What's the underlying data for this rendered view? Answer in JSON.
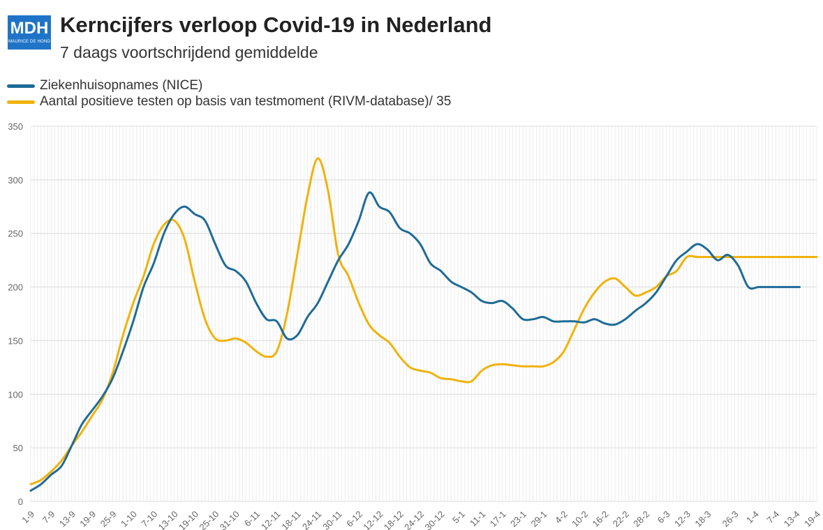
{
  "logo": {
    "text": "MDH",
    "subtext": "MAURICE DE HOND"
  },
  "header": {
    "title": "Kerncijfers verloop Covid-19 in Nederland",
    "subtitle": "7 daags voortschrijdend gemiddelde"
  },
  "chart_data": {
    "type": "line",
    "title": "Kerncijfers verloop Covid-19 in Nederland",
    "subtitle": "7 daags voortschrijdend gemiddelde",
    "ylim": [
      0,
      350
    ],
    "yticks": [
      0,
      50,
      100,
      150,
      200,
      250,
      300,
      350
    ],
    "grid": true,
    "legend_position": "top-left",
    "x_tick_labels": [
      "1-9",
      "7-9",
      "13-9",
      "19-9",
      "25-9",
      "1-10",
      "7-10",
      "13-10",
      "19-10",
      "25-10",
      "31-10",
      "6-11",
      "12-11",
      "18-11",
      "24-11",
      "30-11",
      "6-12",
      "12-12",
      "18-12",
      "24-12",
      "30-12",
      "5-1",
      "11-1",
      "17-1",
      "23-1",
      "29-1",
      "4-2",
      "10-2",
      "16-2",
      "22-2",
      "28-2",
      "6-3",
      "12-3",
      "18-3",
      "26-3",
      "1-4",
      "7-4",
      "13-4",
      "19-4"
    ],
    "x_tick_index": [
      0,
      6,
      12,
      18,
      24,
      30,
      36,
      42,
      48,
      54,
      60,
      66,
      72,
      78,
      84,
      90,
      96,
      102,
      108,
      114,
      120,
      126,
      132,
      138,
      144,
      150,
      156,
      162,
      168,
      174,
      180,
      186,
      192,
      198,
      206,
      212,
      218,
      224,
      230
    ],
    "x_count": 231,
    "series": [
      {
        "name": "Ziekenhuisopnames (NICE)",
        "color": "#1e6b96",
        "x": [
          0,
          3,
          6,
          9,
          12,
          15,
          18,
          21,
          24,
          27,
          30,
          33,
          36,
          39,
          42,
          45,
          48,
          51,
          54,
          57,
          60,
          63,
          66,
          69,
          72,
          75,
          78,
          81,
          84,
          87,
          90,
          93,
          96,
          99,
          102,
          105,
          108,
          111,
          114,
          117,
          120,
          123,
          126,
          129,
          132,
          135,
          138,
          141,
          144,
          147,
          150,
          153,
          156,
          159,
          162,
          165,
          168,
          171,
          174,
          177,
          180,
          183,
          186,
          189,
          192,
          195,
          198,
          201,
          204,
          207,
          210,
          213,
          216,
          219,
          222,
          225
        ],
        "values": [
          10,
          16,
          25,
          33,
          52,
          72,
          85,
          98,
          115,
          140,
          168,
          200,
          222,
          250,
          268,
          275,
          268,
          262,
          240,
          220,
          215,
          205,
          185,
          170,
          168,
          152,
          155,
          172,
          185,
          205,
          225,
          240,
          262,
          288,
          275,
          270,
          255,
          250,
          240,
          222,
          215,
          205,
          200,
          195,
          187,
          185,
          187,
          180,
          170,
          170,
          172,
          168,
          168,
          168,
          167,
          170,
          166,
          165,
          170,
          178,
          185,
          195,
          210,
          225,
          233,
          240,
          235,
          225,
          230,
          220,
          200,
          200,
          200,
          200,
          200,
          200
        ]
      },
      {
        "name": "Aantal positieve testen op basis van testmoment (RIVM-database)/ 35",
        "color": "#f0b20a",
        "x": [
          0,
          3,
          6,
          9,
          12,
          15,
          18,
          21,
          24,
          27,
          30,
          33,
          36,
          39,
          42,
          45,
          48,
          51,
          54,
          57,
          60,
          63,
          66,
          69,
          72,
          75,
          78,
          81,
          84,
          87,
          90,
          93,
          96,
          99,
          102,
          105,
          108,
          111,
          114,
          117,
          120,
          123,
          126,
          129,
          132,
          135,
          138,
          141,
          144,
          147,
          150,
          153,
          156,
          159,
          162,
          165,
          168,
          171,
          174,
          177,
          180,
          183,
          186,
          189,
          192,
          195,
          198,
          201,
          204,
          207,
          210,
          213,
          216,
          219,
          222,
          225,
          228,
          230
        ],
        "values": [
          16,
          20,
          28,
          38,
          52,
          65,
          80,
          95,
          120,
          155,
          185,
          210,
          240,
          258,
          262,
          245,
          205,
          170,
          152,
          150,
          152,
          148,
          140,
          135,
          140,
          175,
          230,
          285,
          320,
          290,
          230,
          210,
          185,
          165,
          155,
          148,
          135,
          125,
          122,
          120,
          115,
          114,
          112,
          112,
          122,
          127,
          128,
          127,
          126,
          126,
          126,
          130,
          140,
          160,
          180,
          195,
          205,
          208,
          200,
          192,
          195,
          200,
          210,
          215,
          228,
          228,
          228,
          228,
          228,
          228,
          228,
          228,
          228,
          228,
          228,
          228,
          228,
          228
        ]
      }
    ]
  }
}
